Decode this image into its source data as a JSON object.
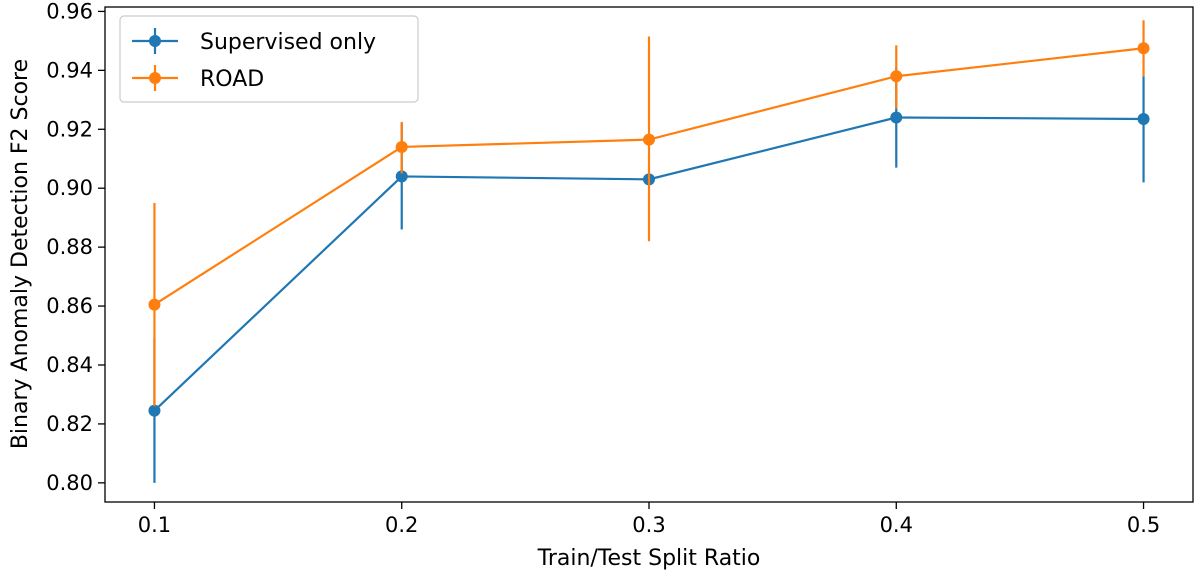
{
  "chart_data": {
    "type": "line",
    "title": "",
    "xlabel": "Train/Test Split Ratio",
    "ylabel": "Binary Anomaly Detection F2 Score",
    "x": [
      0.1,
      0.2,
      0.3,
      0.4,
      0.5
    ],
    "xlim": [
      0.08,
      0.52
    ],
    "ylim": [
      0.7935,
      0.9615
    ],
    "xticks": [
      "0.1",
      "0.2",
      "0.3",
      "0.4",
      "0.5"
    ],
    "yticks": [
      "0.80",
      "0.82",
      "0.84",
      "0.86",
      "0.88",
      "0.90",
      "0.92",
      "0.94",
      "0.96"
    ],
    "grid": false,
    "legend_position": "top-left",
    "series": [
      {
        "name": "Supervised only",
        "color": "#1f77b4",
        "values": [
          0.8245,
          0.904,
          0.903,
          0.924,
          0.9235
        ],
        "error_low": [
          0.8,
          0.886,
          0.903,
          0.907,
          0.902
        ],
        "error_high": [
          0.849,
          0.922,
          0.903,
          0.941,
          0.938
        ]
      },
      {
        "name": "ROAD",
        "color": "#ff7f0e",
        "values": [
          0.8605,
          0.914,
          0.9165,
          0.938,
          0.9475
        ],
        "error_low": [
          0.826,
          0.905,
          0.882,
          0.927,
          0.938
        ],
        "error_high": [
          0.895,
          0.9225,
          0.9515,
          0.9485,
          0.957
        ]
      }
    ]
  }
}
